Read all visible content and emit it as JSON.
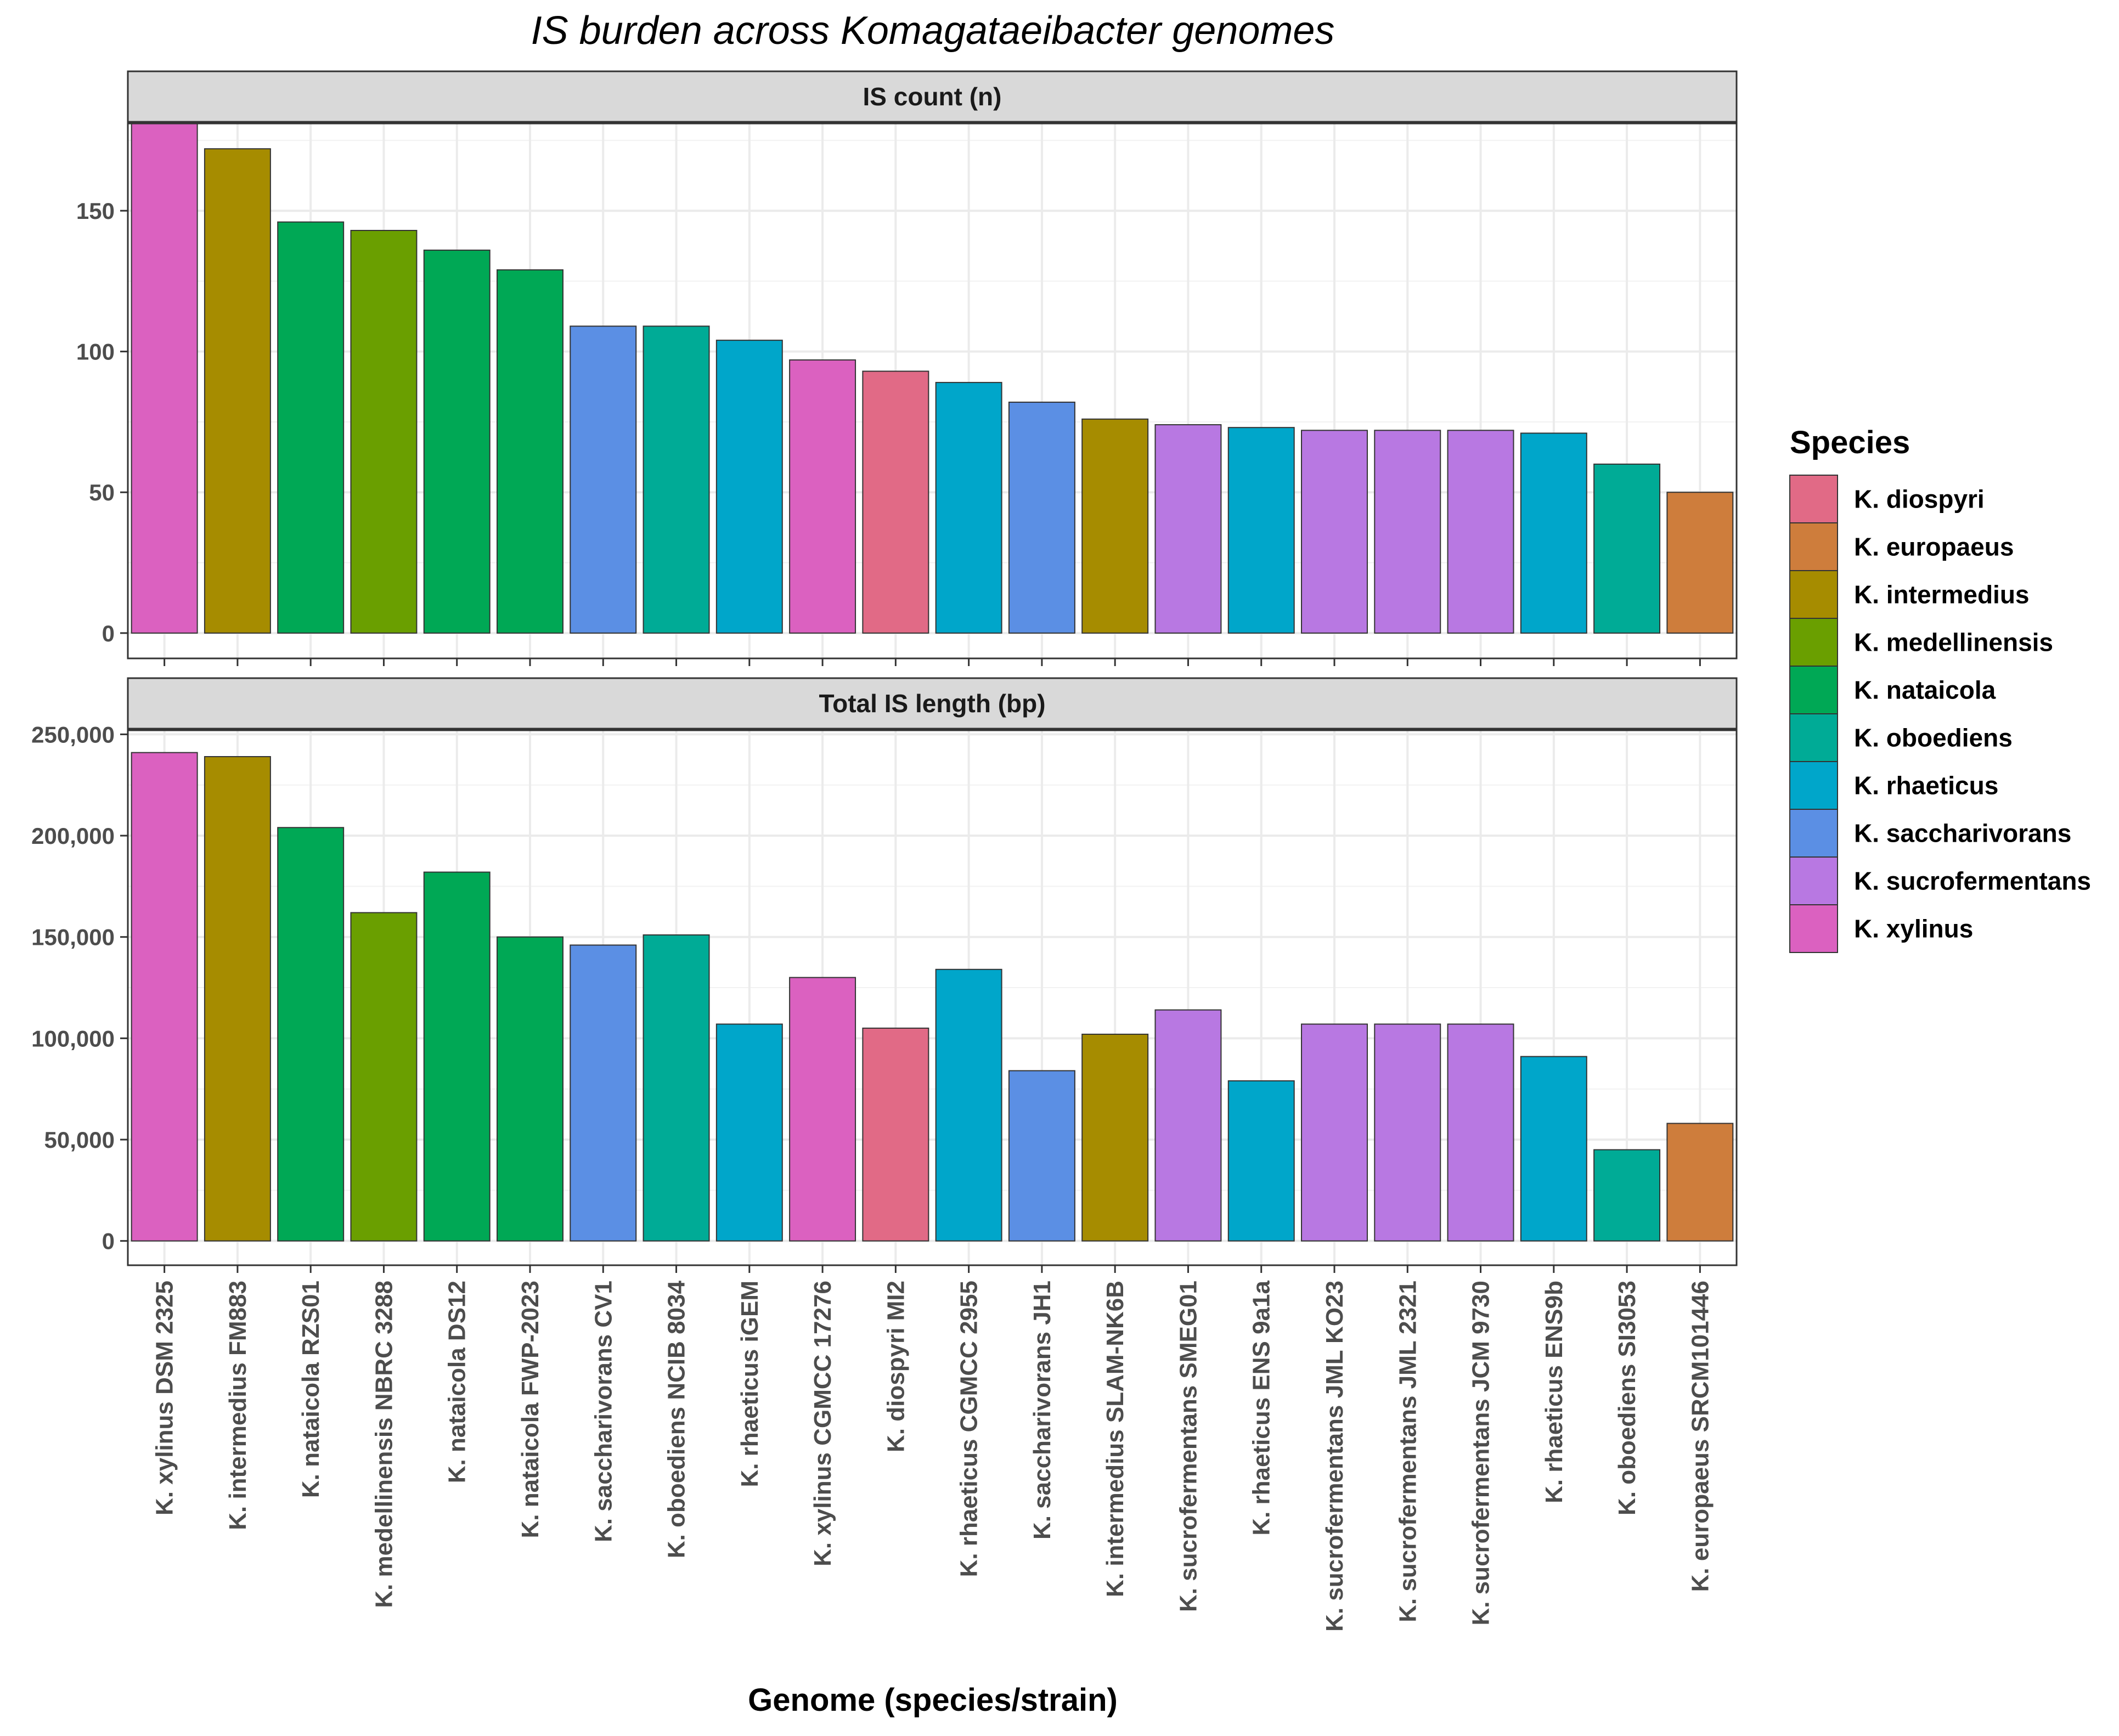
{
  "chart_data": {
    "type": "bar",
    "title": "IS burden across Komagataeibacter genomes",
    "xlabel": "Genome (species/strain)",
    "legend": {
      "title": "Species",
      "placement": "right",
      "entries": [
        {
          "name": "K. diospyri",
          "color": "#E16A86"
        },
        {
          "name": "K. europaeus",
          "color": "#CE7D3C"
        },
        {
          "name": "K. intermedius",
          "color": "#A68C00"
        },
        {
          "name": "K. medellinensis",
          "color": "#6A9F00"
        },
        {
          "name": "K. nataicola",
          "color": "#00A855"
        },
        {
          "name": "K. oboediens",
          "color": "#00AB96"
        },
        {
          "name": "K. rhaeticus",
          "color": "#00A6CA"
        },
        {
          "name": "K. saccharivorans",
          "color": "#5B8FE4"
        },
        {
          "name": "K. sucrofermentans",
          "color": "#B878E2"
        },
        {
          "name": "K. xylinus",
          "color": "#DB61C0"
        }
      ]
    },
    "categories": [
      "K. xylinus DSM 2325",
      "K. intermedius FM883",
      "K. nataicola RZS01",
      "K. medellinensis NBRC 3288",
      "K. nataicola DS12",
      "K. nataicola FWP-2023",
      "K. saccharivorans CV1",
      "K. oboediens NCIB 8034",
      "K. rhaeticus iGEM",
      "K. xylinus CGMCC 17276",
      "K. diospyri MI2",
      "K. rhaeticus CGMCC 2955",
      "K. saccharivorans JH1",
      "K. intermedius SLAM-NK6B",
      "K. sucrofermentans SMEG01",
      "K. rhaeticus ENS 9a1a",
      "K. sucrofermentans JML KO23",
      "K. sucrofermentans JML 2321",
      "K. sucrofermentans JCM 9730",
      "K. rhaeticus ENS9b",
      "K. oboediens SI3053",
      "K. europaeus SRCM101446"
    ],
    "species": [
      "K. xylinus",
      "K. intermedius",
      "K. nataicola",
      "K. medellinensis",
      "K. nataicola",
      "K. nataicola",
      "K. saccharivorans",
      "K. oboediens",
      "K. rhaeticus",
      "K. xylinus",
      "K. diospyri",
      "K. rhaeticus",
      "K. saccharivorans",
      "K. intermedius",
      "K. sucrofermentans",
      "K. rhaeticus",
      "K. sucrofermentans",
      "K. sucrofermentans",
      "K. sucrofermentans",
      "K. rhaeticus",
      "K. oboediens",
      "K. europaeus"
    ],
    "panels": [
      {
        "strip": "IS count (n)",
        "ylim": [
          -9,
          181
        ],
        "yticks": [
          0,
          50,
          100,
          150
        ],
        "ytick_labels": [
          "0",
          "50",
          "100",
          "150"
        ],
        "values": [
          181,
          172,
          146,
          143,
          136,
          129,
          109,
          109,
          104,
          97,
          93,
          89,
          82,
          76,
          74,
          73,
          72,
          72,
          72,
          71,
          60,
          50
        ]
      },
      {
        "strip": "Total IS length (bp)",
        "ylim": [
          -12000,
          252000
        ],
        "yticks": [
          0,
          50000,
          100000,
          150000,
          200000,
          250000
        ],
        "ytick_labels": [
          "0",
          "50,000",
          "100,000",
          "150,000",
          "200,000",
          "250,000"
        ],
        "values": [
          241000,
          239000,
          204000,
          162000,
          182000,
          150000,
          146000,
          151000,
          107000,
          130000,
          105000,
          134000,
          84000,
          102000,
          114000,
          79000,
          107000,
          107000,
          107000,
          91000,
          45000,
          58000
        ]
      }
    ],
    "grid": true
  }
}
